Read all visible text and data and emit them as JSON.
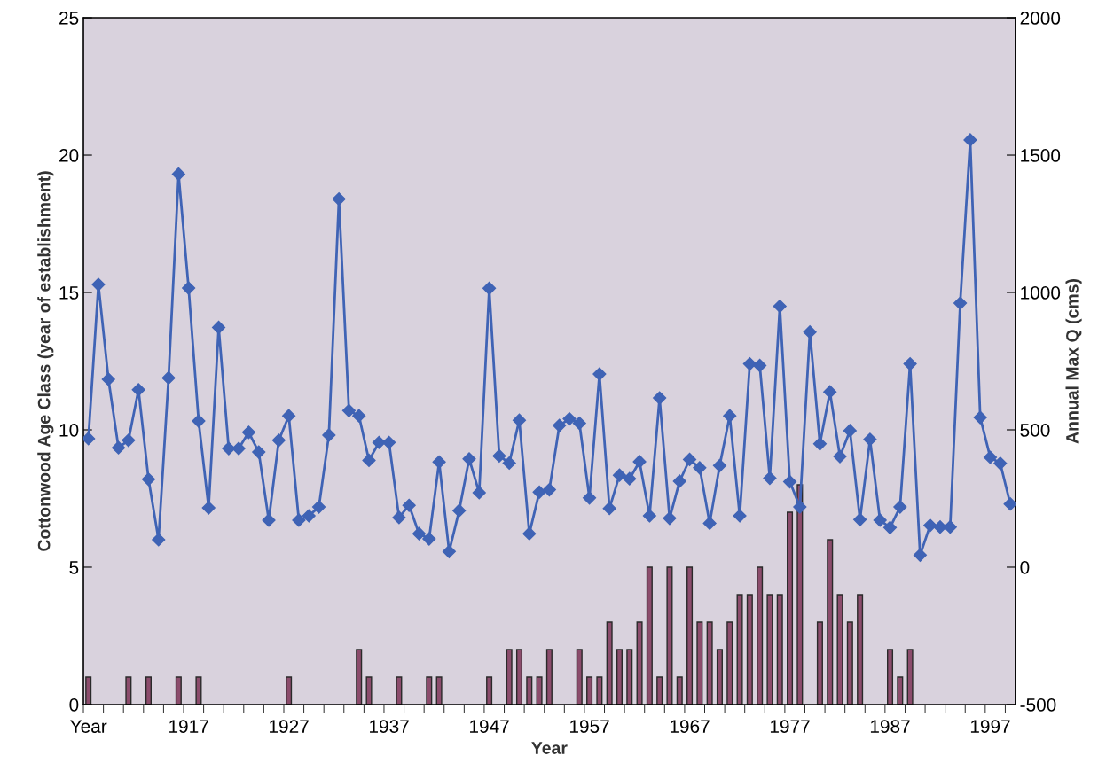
{
  "chart_data": {
    "type": "bar",
    "xlabel": "Year",
    "ylabel": "Cottonwood Age Class (year of establishment)",
    "y2label": "Annual Max Q (cms)",
    "categories": [
      "Year",
      null,
      null,
      null,
      null,
      null,
      null,
      null,
      null,
      null,
      "1917",
      null,
      null,
      null,
      null,
      null,
      null,
      null,
      null,
      null,
      "1927",
      null,
      null,
      null,
      null,
      null,
      null,
      null,
      null,
      null,
      "1937",
      null,
      null,
      null,
      null,
      null,
      null,
      null,
      null,
      null,
      "1947",
      null,
      null,
      null,
      null,
      null,
      null,
      null,
      null,
      null,
      "1957",
      null,
      null,
      null,
      null,
      null,
      null,
      null,
      null,
      null,
      "1967",
      null,
      null,
      null,
      null,
      null,
      null,
      null,
      null,
      null,
      "1977",
      null,
      null,
      null,
      null,
      null,
      null,
      null,
      null,
      null,
      "1987",
      null,
      null,
      null,
      null,
      null,
      null,
      null,
      null,
      null,
      "1997",
      null,
      null
    ],
    "series": [
      {
        "color": "#8c4c6c",
        "values": [
          1,
          null,
          null,
          null,
          1,
          null,
          1,
          null,
          null,
          1,
          null,
          1,
          null,
          null,
          null,
          null,
          null,
          null,
          null,
          null,
          1,
          null,
          null,
          null,
          null,
          null,
          null,
          2,
          1,
          null,
          null,
          1,
          null,
          null,
          1,
          1,
          null,
          null,
          null,
          null,
          1,
          null,
          2,
          2,
          1,
          1,
          2,
          null,
          null,
          2,
          1,
          1,
          3,
          2,
          2,
          3,
          5,
          1,
          5,
          1,
          5,
          3,
          3,
          2,
          3,
          4,
          4,
          5,
          4,
          4,
          7,
          8,
          null,
          3,
          6,
          4,
          3,
          4,
          null,
          null,
          2,
          1,
          2,
          null,
          null,
          null,
          null,
          null,
          null,
          null,
          null,
          null,
          null
        ]
      },
      {
        "type": "line",
        "axis": "y2",
        "color": "#3f63b5",
        "marker": "diamond",
        "values": [
          468,
          1029,
          684,
          435,
          462,
          646,
          320,
          100,
          689,
          1431,
          1016,
          532,
          216,
          873,
          432,
          432,
          491,
          419,
          171,
          462,
          551,
          171,
          187,
          219,
          481,
          1340,
          570,
          551,
          389,
          454,
          454,
          181,
          225,
          122,
          103,
          383,
          57,
          206,
          394,
          271,
          1015,
          405,
          379,
          535,
          122,
          273,
          282,
          516,
          540,
          524,
          252,
          703,
          214,
          335,
          322,
          384,
          187,
          616,
          178,
          313,
          392,
          362,
          160,
          370,
          551,
          187,
          740,
          734,
          324,
          950,
          311,
          219,
          856,
          449,
          638,
          403,
          497,
          173,
          465,
          171,
          144,
          219,
          740,
          44,
          152,
          146,
          146,
          961,
          1555,
          545,
          400,
          378,
          230
        ]
      }
    ],
    "ylim": [
      0,
      25
    ],
    "yticks": [
      0,
      5,
      10,
      15,
      20,
      25
    ],
    "y2lim": [
      -500,
      2000
    ],
    "y2ticks": [
      -500,
      0,
      500,
      1000,
      1500,
      2000
    ],
    "grid": false,
    "legend": false
  }
}
